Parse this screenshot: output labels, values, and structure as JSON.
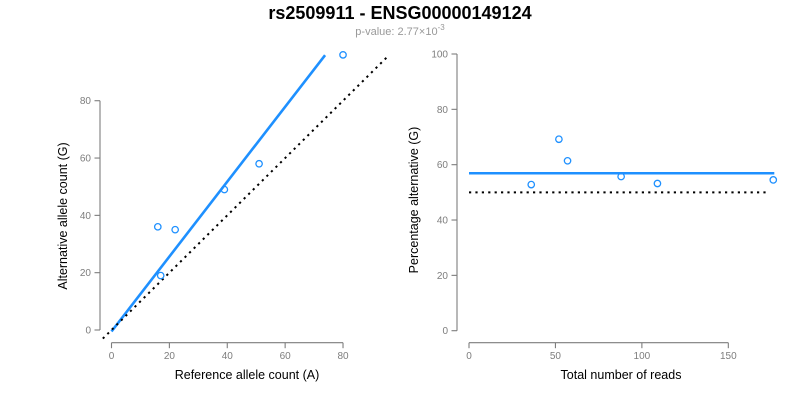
{
  "header": {
    "title": "rs2509911 - ENSG00000149124",
    "subtitle_main": "p-value: 2.77×10",
    "subtitle_exponent": "-3"
  },
  "colors": {
    "fit_blue": "#1E90FF",
    "reference_black": "#000000",
    "axis_gray": "#7d7d7d",
    "subtitle_gray": "#999999",
    "background": "#ffffff"
  },
  "chart_data": [
    {
      "type": "scatter",
      "panel": "allele-counts",
      "xlabel": "Reference allele count (A)",
      "ylabel": "Alternative allele count (G)",
      "x": [
        16,
        22,
        17,
        39,
        51,
        80
      ],
      "y": [
        36,
        35,
        19,
        49,
        58,
        96
      ],
      "xticks": [
        0,
        20,
        40,
        60,
        80
      ],
      "yticks": [
        0,
        20,
        40,
        60,
        80
      ],
      "xlim": [
        -4,
        96
      ],
      "ylim": [
        -4,
        100
      ],
      "grid": false,
      "legend": "none",
      "marker": "open-circle",
      "lines": [
        {
          "name": "fit-line",
          "style": "solid",
          "color_key": "fit_blue",
          "x1": 0,
          "y1": -0.5,
          "x2": 73.8,
          "y2": 95.9
        },
        {
          "name": "identity-line",
          "style": "dotted",
          "color_key": "reference_black",
          "x1": -3,
          "y1": -3,
          "x2": 95.5,
          "y2": 95.5
        }
      ]
    },
    {
      "type": "scatter",
      "panel": "percentage-alternative",
      "xlabel": "Total number of reads",
      "ylabel": "Percentage alternative (G)",
      "x": [
        52,
        57,
        36,
        88,
        109,
        176
      ],
      "y": [
        69.2,
        61.4,
        52.8,
        55.7,
        53.2,
        54.5
      ],
      "xticks": [
        0,
        50,
        100,
        150
      ],
      "yticks": [
        0,
        20,
        40,
        60,
        80,
        100
      ],
      "xlim": [
        -7,
        183
      ],
      "ylim": [
        0,
        101
      ],
      "grid": false,
      "legend": "none",
      "marker": "open-circle",
      "lines": [
        {
          "name": "mean-percentage-line",
          "style": "solid",
          "color_key": "fit_blue",
          "x1": 0,
          "y1": 56.9,
          "x2": 176.6,
          "y2": 56.9
        },
        {
          "name": "fifty-percent-line",
          "style": "dotted",
          "color_key": "reference_black",
          "x1": 0,
          "y1": 50,
          "x2": 173,
          "y2": 50
        }
      ]
    }
  ]
}
